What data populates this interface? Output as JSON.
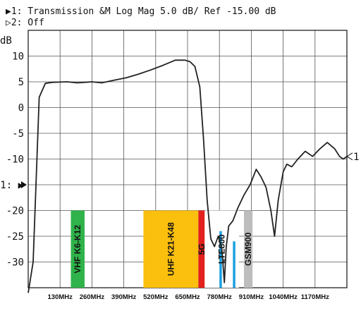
{
  "header": {
    "trace1": "▶1: Transmission  &M Log Mag   5.0 dB/ Ref -15.00 dB",
    "trace2": "▷2: Off"
  },
  "chart_data": {
    "type": "line",
    "ylabel": "dB",
    "ylim": [
      -35,
      15
    ],
    "yticks": [
      10,
      5,
      0,
      -5,
      -10,
      -15,
      -20,
      -25,
      -30
    ],
    "ytick_labels": [
      "10",
      "5",
      "0",
      "-5",
      "-10",
      "1: ▶",
      "-20",
      "-25",
      "-30"
    ],
    "xlim_mhz": [
      0,
      1300
    ],
    "xticks_mhz": [
      130,
      260,
      390,
      520,
      650,
      780,
      910,
      1040,
      1170
    ],
    "xtick_labels": [
      "130MHz",
      "260MHz",
      "390MHz",
      "520MHz",
      "650MHz",
      "780MHz",
      "910MHz",
      "1040MHz",
      "1170MHz"
    ],
    "reference_marker": "1: ▶",
    "end_marker": "1",
    "grid": true,
    "series": [
      {
        "color": "#222222",
        "x": [
          0,
          20,
          45,
          70,
          100,
          160,
          200,
          260,
          300,
          350,
          400,
          450,
          500,
          550,
          600,
          640,
          660,
          680,
          700,
          715,
          730,
          745,
          760,
          775,
          790,
          800,
          808,
          818,
          835,
          855,
          880,
          905,
          930,
          950,
          970,
          990,
          1005,
          1020,
          1040,
          1055,
          1075,
          1100,
          1130,
          1160,
          1190,
          1220,
          1250,
          1270,
          1285,
          1300
        ],
        "y": [
          -36,
          -30,
          2,
          4.7,
          4.9,
          5,
          4.8,
          5,
          4.8,
          5.3,
          5.8,
          6.5,
          7.3,
          8.2,
          9.2,
          9.2,
          8.9,
          8,
          4,
          -6,
          -18,
          -25.5,
          -27,
          -25,
          -27.5,
          -34,
          -27,
          -23,
          -22,
          -19.5,
          -17,
          -15,
          -12,
          -13.5,
          -15.5,
          -20,
          -25,
          -18,
          -12.5,
          -11,
          -11.5,
          -10,
          -8.5,
          -9.5,
          -8,
          -6.8,
          -8,
          -9.5,
          -10,
          -9.5
        ]
      }
    ],
    "bands": [
      {
        "label": "VHF K6-K12",
        "color": "#2fb34a",
        "from_mhz": 174,
        "to_mhz": 230,
        "top_db": -20
      },
      {
        "label": "UHF K21-K48",
        "color": "#fbbf0d",
        "from_mhz": 470,
        "to_mhz": 694,
        "top_db": -20
      },
      {
        "label": "5G",
        "color": "#e3211c",
        "from_mhz": 694,
        "to_mhz": 720,
        "top_db": -20
      },
      {
        "label": "LTE800",
        "color": "#ffffff",
        "from_mhz": 720,
        "to_mhz": 860,
        "top_db": -20
      },
      {
        "label": "GSM900",
        "color": "#bdbdbd",
        "from_mhz": 880,
        "to_mhz": 915,
        "top_db": -20
      }
    ],
    "lte_bars": [
      {
        "color": "#1aa0e0",
        "from_mhz": 780,
        "to_mhz": 790,
        "top_db": -24
      },
      {
        "color": "#1aa0e0",
        "from_mhz": 835,
        "to_mhz": 845,
        "top_db": -26
      }
    ]
  }
}
